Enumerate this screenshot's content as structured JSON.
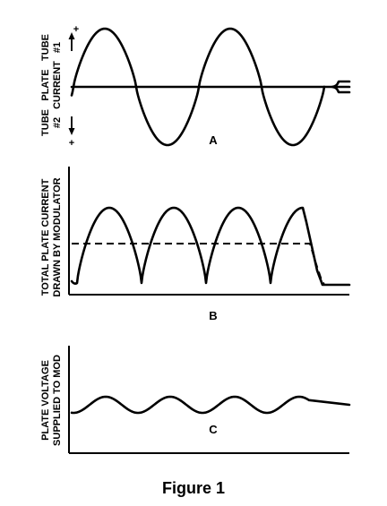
{
  "figure": {
    "caption": "Figure 1"
  },
  "panel_a": {
    "letter": "A",
    "tube1_line1": "TUBE",
    "tube1_line2": "#1",
    "ylabel_line1": "PLATE",
    "ylabel_line2": "CURRENT",
    "tube2_line1": "TUBE",
    "tube2_line2": "#2",
    "plus_top": "+",
    "plus_bottom": "+"
  },
  "panel_b": {
    "letter": "B",
    "ylabel_line1": "TOTAL PLATE CURRENT",
    "ylabel_line2": "DRAWN BY MODULATOR"
  },
  "panel_c": {
    "letter": "C",
    "ylabel_line1": "PLATE VOLTAGE",
    "ylabel_line2": "SUPPLIED TO MOD"
  },
  "colors": {
    "ink": "#000000",
    "background": "#ffffff"
  }
}
